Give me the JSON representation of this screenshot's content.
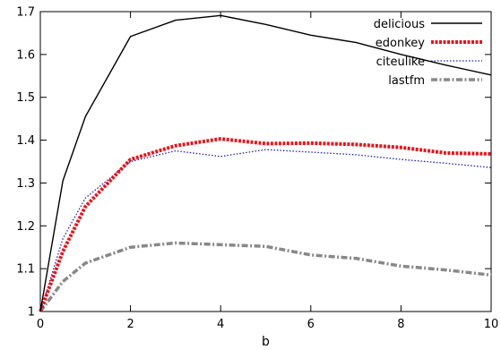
{
  "chart_data": {
    "type": "line",
    "title": "",
    "xlabel": "b",
    "ylabel": "",
    "xlim": [
      0,
      10
    ],
    "ylim": [
      1,
      1.7
    ],
    "xticks": [
      0,
      2,
      4,
      6,
      8,
      10
    ],
    "yticks": [
      1,
      1.1,
      1.2,
      1.3,
      1.4,
      1.5,
      1.6,
      1.7
    ],
    "xtick_labels": [
      "0",
      "2",
      "4",
      "6",
      "8",
      "10"
    ],
    "ytick_labels": [
      "1",
      "1.1",
      "1.2",
      "1.3",
      "1.4",
      "1.5",
      "1.6",
      "1.7"
    ],
    "grid": false,
    "legend_position": "top-right",
    "series": [
      {
        "name": "delicious",
        "color": "#000000",
        "style": "solid",
        "x": [
          0,
          0.5,
          1,
          2,
          3,
          4,
          5,
          6,
          7,
          8,
          9,
          10
        ],
        "y": [
          1.0,
          1.305,
          1.455,
          1.642,
          1.68,
          1.691,
          1.67,
          1.645,
          1.628,
          1.6,
          1.575,
          1.552
        ]
      },
      {
        "name": "edonkey",
        "color": "#e8141c",
        "style": "dotted-thick",
        "x": [
          0,
          0.5,
          1,
          2,
          3,
          4,
          5,
          6,
          7,
          8,
          9,
          10
        ],
        "y": [
          1.0,
          1.14,
          1.245,
          1.355,
          1.387,
          1.403,
          1.392,
          1.393,
          1.39,
          1.383,
          1.37,
          1.368
        ]
      },
      {
        "name": "citeulike",
        "color": "#1e1eb4",
        "style": "dotted",
        "x": [
          0,
          0.5,
          1,
          2,
          3,
          4,
          5,
          6,
          7,
          8,
          9,
          10
        ],
        "y": [
          1.0,
          1.17,
          1.265,
          1.35,
          1.375,
          1.362,
          1.378,
          1.372,
          1.366,
          1.355,
          1.346,
          1.336
        ]
      },
      {
        "name": "lastfm",
        "color": "#888888",
        "style": "dash-dot-thick",
        "x": [
          0,
          0.5,
          1,
          2,
          3,
          4,
          5,
          6,
          7,
          8,
          9,
          10
        ],
        "y": [
          1.0,
          1.07,
          1.113,
          1.15,
          1.16,
          1.156,
          1.152,
          1.132,
          1.124,
          1.106,
          1.097,
          1.085
        ]
      }
    ]
  }
}
